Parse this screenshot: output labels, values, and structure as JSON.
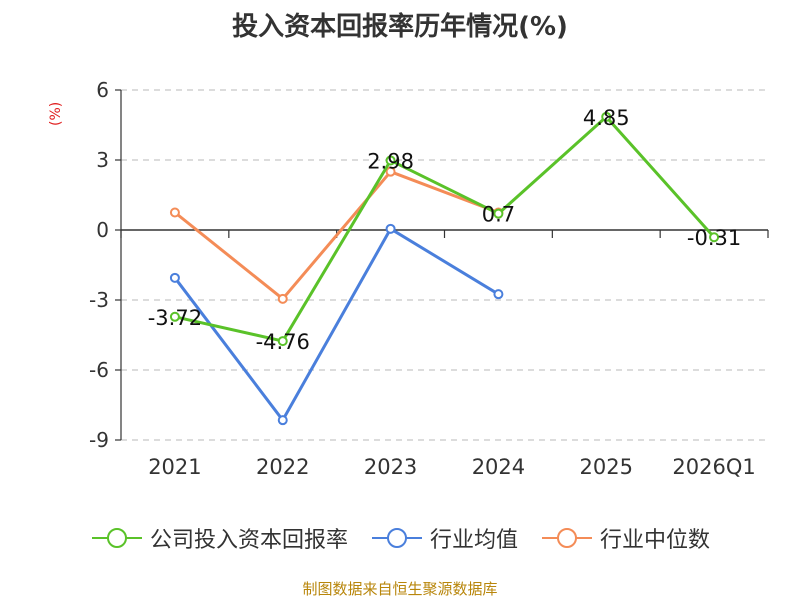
{
  "chart_data": {
    "type": "line",
    "title": "投入资本回报率历年情况(%)",
    "ylabel": "(%)",
    "xlabel": "",
    "categories": [
      "2021",
      "2022",
      "2023",
      "2024",
      "2025",
      "2026Q1"
    ],
    "ylim": [
      -9,
      6
    ],
    "yticks": [
      6,
      3,
      0,
      -3,
      -6,
      -9
    ],
    "grid": true,
    "legend_position": "bottom",
    "series": [
      {
        "name": "公司投入资本回报率",
        "color": "#5ac229",
        "values": [
          -3.72,
          -4.76,
          2.98,
          0.7,
          4.85,
          -0.31
        ],
        "labels": [
          "-3.72",
          "-4.76",
          "2.98",
          "0.7",
          "4.85",
          "-0.31"
        ]
      },
      {
        "name": "行业均值",
        "color": "#4a7fdc",
        "values": [
          -2.05,
          -8.15,
          0.05,
          -2.75,
          null,
          null
        ]
      },
      {
        "name": "行业中位数",
        "color": "#f48c57",
        "values": [
          0.75,
          -2.95,
          2.5,
          0.75,
          null,
          null
        ]
      }
    ]
  },
  "source": "制图数据来自恒生聚源数据库"
}
